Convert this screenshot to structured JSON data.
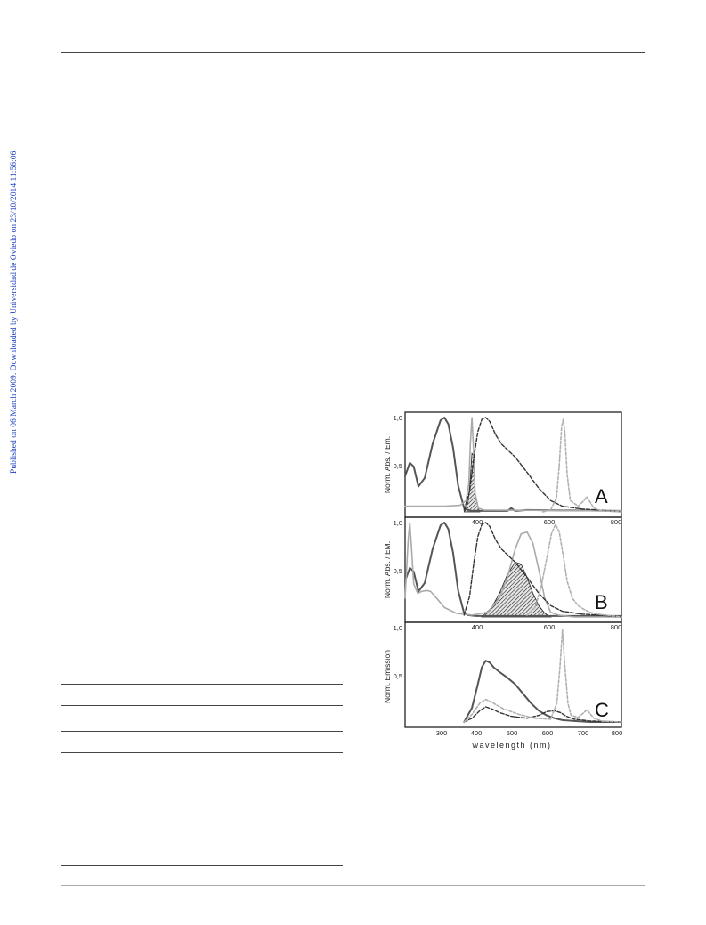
{
  "side_note": "Published on 06 March 2009. Downloaded by Universidad de Oviedo on 23/10/2014 11:56:06.",
  "chart_data": [
    {
      "panel": "A",
      "type": "line",
      "ylabel": "Norm. Abs. / Em.",
      "xlim": [
        250,
        800
      ],
      "ylim": [
        0,
        1.0
      ],
      "xticks": [
        "400",
        "600",
        "800"
      ],
      "yticks": [
        "1,0",
        "0,5"
      ],
      "series": [
        {
          "style": "dark-solid",
          "x": [
            250,
            262,
            272,
            284,
            300,
            320,
            340,
            350,
            360,
            372,
            385,
            400,
            410,
            420,
            440,
            510,
            520,
            530,
            560,
            800
          ],
          "y": [
            0.38,
            0.52,
            0.48,
            0.27,
            0.36,
            0.72,
            0.97,
            1.0,
            0.93,
            0.68,
            0.28,
            0.04,
            0.02,
            0.01,
            0.01,
            0.01,
            0.04,
            0.01,
            0.02,
            0.01
          ]
        },
        {
          "style": "light-solid",
          "x": [
            250,
            300,
            350,
            390,
            405,
            412,
            416,
            420,
            424,
            428,
            436,
            450,
            800
          ],
          "y": [
            0.06,
            0.06,
            0.06,
            0.07,
            0.12,
            0.3,
            0.72,
            1.0,
            0.65,
            0.2,
            0.04,
            0.02,
            0.01
          ]
        },
        {
          "style": "dark-dashed",
          "x": [
            400,
            414,
            425,
            435,
            445,
            455,
            465,
            480,
            495,
            510,
            530,
            560,
            590,
            620,
            650,
            700,
            740,
            800
          ],
          "y": [
            0.02,
            0.22,
            0.58,
            0.85,
            0.98,
            1.0,
            0.96,
            0.82,
            0.72,
            0.66,
            0.58,
            0.42,
            0.25,
            0.12,
            0.06,
            0.03,
            0.02,
            0.0
          ]
        },
        {
          "style": "light-dashed",
          "x": [
            600,
            620,
            635,
            642,
            648,
            652,
            656,
            662,
            670,
            690,
            705,
            712,
            718,
            730,
            750,
            800
          ],
          "y": [
            0.0,
            0.02,
            0.15,
            0.5,
            0.9,
            0.98,
            0.85,
            0.4,
            0.12,
            0.06,
            0.12,
            0.16,
            0.12,
            0.04,
            0.01,
            0.0
          ]
        }
      ],
      "overlap_region": {
        "x": [
          400,
          410,
          415,
          420,
          424,
          428,
          436,
          440
        ],
        "y": [
          0.0,
          0.1,
          0.3,
          0.62,
          0.6,
          0.2,
          0.04,
          0.0
        ]
      }
    },
    {
      "panel": "B",
      "type": "line",
      "ylabel": "Norm. Abs. / EM.",
      "xlim": [
        250,
        800
      ],
      "ylim": [
        0,
        1.0
      ],
      "xticks": [
        "400",
        "600",
        "800"
      ],
      "yticks": [
        "1,0",
        "0,5"
      ],
      "series": [
        {
          "style": "dark-solid",
          "x": [
            250,
            262,
            272,
            284,
            300,
            320,
            340,
            350,
            360,
            372,
            385,
            400,
            410,
            430,
            800
          ],
          "y": [
            0.38,
            0.52,
            0.48,
            0.27,
            0.36,
            0.72,
            0.97,
            1.0,
            0.93,
            0.68,
            0.28,
            0.04,
            0.02,
            0.01,
            0.01
          ]
        },
        {
          "style": "light-solid",
          "x": [
            250,
            258,
            262,
            266,
            272,
            282,
            292,
            305,
            315,
            330,
            350,
            380,
            420,
            460,
            490,
            510,
            530,
            545,
            560,
            575,
            590,
            605,
            620,
            640,
            660,
            680,
            800
          ],
          "y": [
            0.2,
            0.82,
            1.0,
            0.75,
            0.35,
            0.25,
            0.27,
            0.28,
            0.27,
            0.2,
            0.1,
            0.04,
            0.02,
            0.05,
            0.2,
            0.42,
            0.72,
            0.88,
            0.9,
            0.78,
            0.5,
            0.2,
            0.05,
            0.02,
            0.01,
            0.0,
            0.0
          ]
        },
        {
          "style": "dark-dashed",
          "x": [
            400,
            414,
            425,
            435,
            445,
            455,
            465,
            480,
            495,
            510,
            530,
            560,
            590,
            620,
            650,
            700,
            740,
            800
          ],
          "y": [
            0.02,
            0.22,
            0.58,
            0.85,
            0.98,
            1.0,
            0.96,
            0.82,
            0.72,
            0.66,
            0.58,
            0.42,
            0.25,
            0.12,
            0.06,
            0.03,
            0.02,
            0.0
          ]
        },
        {
          "style": "light-dashed",
          "x": [
            560,
            580,
            595,
            610,
            622,
            632,
            642,
            652,
            662,
            675,
            690,
            705,
            720,
            740,
            800
          ],
          "y": [
            0.02,
            0.1,
            0.3,
            0.62,
            0.88,
            0.98,
            0.9,
            0.65,
            0.38,
            0.2,
            0.12,
            0.08,
            0.05,
            0.03,
            0.0
          ]
        }
      ],
      "overlap_region": {
        "x": [
          445,
          470,
          490,
          510,
          530,
          545,
          560,
          575,
          590,
          605,
          620
        ],
        "y": [
          0.0,
          0.1,
          0.25,
          0.45,
          0.58,
          0.56,
          0.42,
          0.25,
          0.12,
          0.04,
          0.0
        ]
      }
    },
    {
      "panel": "C",
      "type": "line",
      "ylabel": "Norm. Emission",
      "xlabel": "wavelength (nm)",
      "xlim": [
        250,
        800
      ],
      "ylim": [
        0,
        1.0
      ],
      "xticks": [
        "300",
        "400",
        "500",
        "600",
        "700",
        "800"
      ],
      "yticks": [
        "1,0",
        "0,5"
      ],
      "series": [
        {
          "style": "dark-solid",
          "x": [
            400,
            420,
            435,
            445,
            455,
            465,
            475,
            490,
            510,
            530,
            550,
            570,
            590,
            610,
            630,
            650,
            680,
            720,
            800
          ],
          "y": [
            0.0,
            0.15,
            0.4,
            0.58,
            0.65,
            0.63,
            0.58,
            0.53,
            0.47,
            0.4,
            0.3,
            0.2,
            0.12,
            0.07,
            0.04,
            0.02,
            0.01,
            0.0,
            0.0
          ]
        },
        {
          "style": "dark-dashed",
          "x": [
            400,
            420,
            440,
            455,
            470,
            490,
            520,
            560,
            590,
            610,
            630,
            645,
            660,
            680,
            720,
            800
          ],
          "y": [
            0.0,
            0.04,
            0.12,
            0.16,
            0.14,
            0.1,
            0.06,
            0.04,
            0.07,
            0.11,
            0.12,
            0.1,
            0.06,
            0.03,
            0.01,
            0.0
          ]
        },
        {
          "style": "light-dashed",
          "x": [
            400,
            420,
            440,
            455,
            470,
            500,
            540,
            580,
            620,
            636,
            644,
            650,
            656,
            664,
            672,
            690,
            705,
            712,
            718,
            730,
            750,
            800
          ],
          "y": [
            0.0,
            0.08,
            0.2,
            0.24,
            0.21,
            0.14,
            0.08,
            0.04,
            0.03,
            0.2,
            0.6,
            0.98,
            0.6,
            0.2,
            0.07,
            0.05,
            0.1,
            0.13,
            0.1,
            0.04,
            0.01,
            0.0
          ]
        }
      ]
    }
  ],
  "panel_labels": [
    "A",
    "B",
    "C"
  ]
}
